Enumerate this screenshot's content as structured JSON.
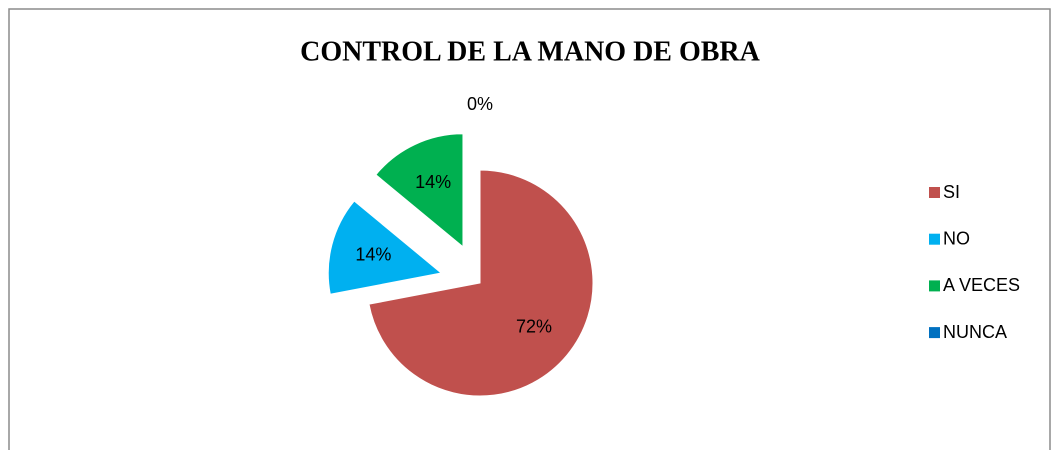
{
  "chart_data": {
    "type": "pie",
    "title": "CONTROL DE LA MANO DE OBRA",
    "categories": [
      "SI",
      "NO",
      "A VECES",
      "NUNCA"
    ],
    "values": [
      72,
      14,
      14,
      0
    ],
    "value_labels": [
      "72%",
      "14%",
      "14%",
      "0%"
    ],
    "colors": [
      "#c0504d",
      "#00b0f0",
      "#00b050",
      "#0070c0"
    ],
    "legend": "right"
  }
}
